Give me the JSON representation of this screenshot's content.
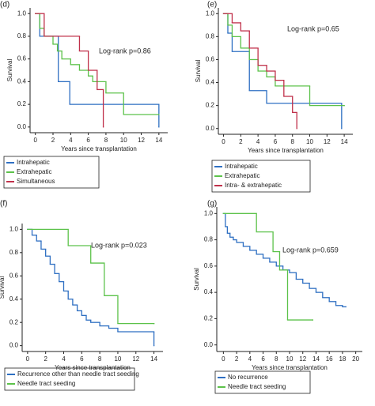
{
  "chart_data": [
    {
      "type": "step",
      "label": "(d)",
      "annotation": "Log-rank p=0.86",
      "xlabel": "Years since transplantation",
      "ylabel": "Survival",
      "xlim": [
        -0.6,
        15
      ],
      "ylim": [
        -0.05,
        1.05
      ],
      "xticks": [
        0,
        2,
        4,
        6,
        8,
        10,
        12,
        14
      ],
      "yticks": [
        {
          "value": 0,
          "label": "0.0"
        },
        0.2,
        0.4,
        0.6,
        0.8,
        {
          "value": 1,
          "label": "1.0"
        }
      ],
      "series": [
        {
          "name": "Intrahepatic",
          "color": "#2e6fc2",
          "x": [
            0,
            0.5,
            2.6,
            3.9,
            14
          ],
          "values": [
            1,
            0.8,
            0.4,
            0.2,
            0
          ]
        },
        {
          "name": "Extrahepatic",
          "color": "#5cc24a",
          "x": [
            0,
            0.5,
            1,
            2,
            2.5,
            3,
            4,
            5,
            6,
            6.5,
            8,
            10,
            14
          ],
          "values": [
            1,
            0.87,
            0.8,
            0.73,
            0.67,
            0.6,
            0.55,
            0.5,
            0.45,
            0.4,
            0.3,
            0.11,
            0.11
          ]
        },
        {
          "name": "Simultaneous",
          "color": "#c0304a",
          "x": [
            0,
            1,
            5,
            6,
            7,
            7.7
          ],
          "values": [
            1,
            0.8,
            0.67,
            0.5,
            0.33,
            0
          ]
        }
      ]
    },
    {
      "type": "step",
      "label": "(e)",
      "annotation": "Log-rank p=0.65",
      "xlabel": "Years since transplantation",
      "ylabel": "Survival",
      "xlim": [
        -0.6,
        15
      ],
      "ylim": [
        -0.05,
        1.05
      ],
      "xticks": [
        0,
        2,
        4,
        6,
        8,
        10,
        12,
        14
      ],
      "yticks": [
        {
          "value": 0,
          "label": "0.0"
        },
        0.2,
        0.4,
        0.6,
        0.8,
        {
          "value": 1,
          "label": "1.0"
        }
      ],
      "series": [
        {
          "name": "Intrahepatic",
          "color": "#2e6fc2",
          "x": [
            0,
            0.5,
            1,
            3,
            5,
            13.7
          ],
          "values": [
            1,
            0.83,
            0.67,
            0.33,
            0.22,
            0
          ]
        },
        {
          "name": "Extrahepatic",
          "color": "#5cc24a",
          "x": [
            0,
            0.5,
            1,
            2,
            3,
            4,
            5,
            6,
            10,
            14
          ],
          "values": [
            1,
            0.9,
            0.8,
            0.7,
            0.6,
            0.5,
            0.45,
            0.37,
            0.2,
            0.2
          ]
        },
        {
          "name": "Intra- & extrahepatic",
          "color": "#c0304a",
          "x": [
            0,
            1,
            2,
            3,
            4,
            5,
            6,
            7,
            8,
            8.5
          ],
          "values": [
            1,
            0.92,
            0.85,
            0.7,
            0.55,
            0.5,
            0.42,
            0.28,
            0.14,
            0
          ]
        }
      ]
    },
    {
      "type": "step",
      "label": "(f)",
      "annotation": "Log-rank p=0.023",
      "xlabel": "Years since transplantation",
      "ylabel": "Survival",
      "xlim": [
        -0.6,
        15
      ],
      "ylim": [
        -0.05,
        1.05
      ],
      "xticks": [
        0,
        2,
        4,
        6,
        8,
        10,
        12,
        14
      ],
      "yticks": [
        {
          "value": 0,
          "label": "0.0"
        },
        0.2,
        0.4,
        0.6,
        0.8,
        {
          "value": 1,
          "label": "1.0"
        }
      ],
      "series": [
        {
          "name": "Recurrence other than needle tract seeding",
          "color": "#2e6fc2",
          "x": [
            0,
            0.5,
            1,
            1.5,
            2,
            2.5,
            3,
            3.5,
            4,
            4.5,
            5,
            5.5,
            6,
            6.5,
            7,
            8,
            9,
            10,
            14
          ],
          "values": [
            1,
            0.95,
            0.9,
            0.83,
            0.77,
            0.7,
            0.62,
            0.55,
            0.47,
            0.4,
            0.35,
            0.3,
            0.26,
            0.22,
            0.2,
            0.17,
            0.15,
            0.12,
            0
          ]
        },
        {
          "name": "Needle tract seeding",
          "color": "#5cc24a",
          "x": [
            0,
            4.5,
            7,
            8.5,
            10,
            14
          ],
          "values": [
            1,
            0.86,
            0.71,
            0.43,
            0.19,
            0.19
          ]
        }
      ]
    },
    {
      "type": "step",
      "label": "(g)",
      "annotation": "Log-rank p=0.659",
      "xlabel": "Years since transplantation",
      "ylabel": "Survival",
      "xlim": [
        -1,
        21
      ],
      "ylim": [
        -0.05,
        1.05
      ],
      "xticks": [
        0,
        2,
        4,
        6,
        8,
        10,
        12,
        14,
        16,
        18,
        20
      ],
      "yticks": [
        {
          "value": 0,
          "label": "0.0"
        },
        0.2,
        0.4,
        0.6,
        0.8,
        {
          "value": 1,
          "label": "1.0"
        }
      ],
      "series": [
        {
          "name": "No recurrence",
          "color": "#2e6fc2",
          "x": [
            0,
            0.3,
            0.6,
            1,
            1.5,
            2,
            3,
            4,
            5,
            6,
            7,
            8,
            9,
            10,
            11,
            12,
            13,
            14,
            15,
            16,
            17,
            18,
            18.5
          ],
          "values": [
            1,
            0.9,
            0.85,
            0.82,
            0.8,
            0.78,
            0.75,
            0.72,
            0.69,
            0.66,
            0.63,
            0.6,
            0.57,
            0.55,
            0.5,
            0.47,
            0.43,
            0.4,
            0.36,
            0.33,
            0.3,
            0.29,
            0.29
          ]
        },
        {
          "name": "Needle tract seeding",
          "color": "#5cc24a",
          "x": [
            0,
            5,
            7.5,
            8.5,
            9.7,
            13.5
          ],
          "values": [
            1,
            0.86,
            0.71,
            0.57,
            0.19,
            0.19
          ]
        }
      ]
    }
  ]
}
